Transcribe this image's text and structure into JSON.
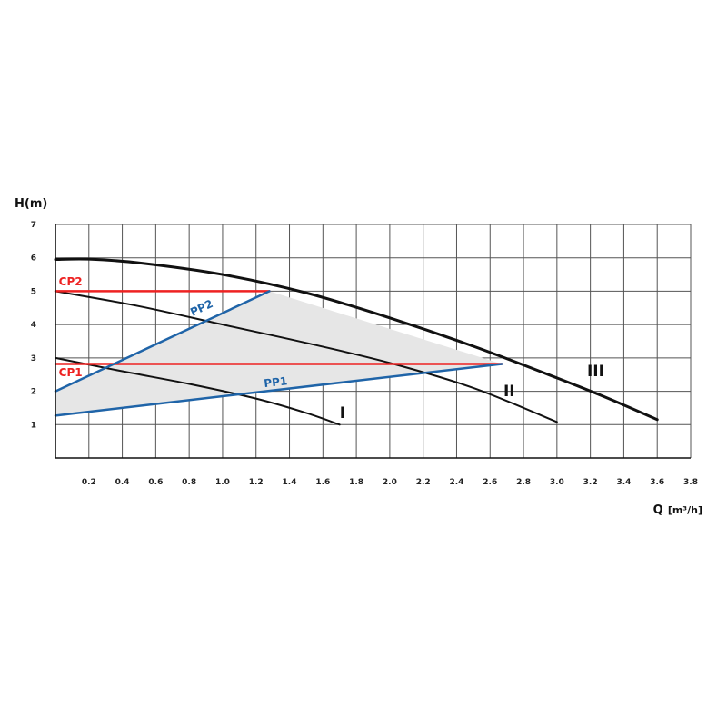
{
  "chart_data": {
    "type": "line",
    "xlabel": "Q",
    "xlabel_unit": "[m³/h]",
    "ylabel": "H(m)",
    "xlim": [
      0,
      3.8
    ],
    "ylim": [
      0,
      7
    ],
    "x_ticks": [
      "0.2",
      "0.4",
      "0.6",
      "0.8",
      "1.0",
      "1.2",
      "1.4",
      "1.6",
      "1.8",
      "2.0",
      "2.2",
      "2.4",
      "2.6",
      "2.8",
      "3.0",
      "3.2",
      "3.4",
      "3.6",
      "3.8"
    ],
    "y_ticks": [
      "1",
      "2",
      "3",
      "4",
      "5",
      "6",
      "7"
    ],
    "grid": true,
    "shaded_region": {
      "color": "#e6e6e6",
      "points": [
        [
          0,
          1.27
        ],
        [
          2.67,
          2.82
        ],
        [
          1.28,
          5.0
        ],
        [
          0,
          2.0
        ]
      ]
    },
    "series": [
      {
        "name": "I",
        "color": "#111111",
        "width": 2,
        "points": [
          [
            0,
            3.0
          ],
          [
            0.4,
            2.6
          ],
          [
            0.8,
            2.22
          ],
          [
            1.2,
            1.78
          ],
          [
            1.5,
            1.35
          ],
          [
            1.7,
            1.0
          ]
        ],
        "label_at": [
          1.7,
          1.2
        ]
      },
      {
        "name": "II",
        "color": "#111111",
        "width": 2,
        "points": [
          [
            0,
            5.0
          ],
          [
            0.5,
            4.55
          ],
          [
            1.0,
            4.0
          ],
          [
            1.5,
            3.45
          ],
          [
            2.0,
            2.85
          ],
          [
            2.5,
            2.1
          ],
          [
            3.0,
            1.08
          ]
        ],
        "label_at": [
          2.68,
          1.85
        ]
      },
      {
        "name": "III",
        "color": "#111111",
        "width": 3,
        "points": [
          [
            0,
            5.95
          ],
          [
            0.2,
            5.96
          ],
          [
            0.5,
            5.85
          ],
          [
            1.0,
            5.5
          ],
          [
            1.5,
            4.95
          ],
          [
            2.0,
            4.2
          ],
          [
            2.5,
            3.35
          ],
          [
            3.0,
            2.4
          ],
          [
            3.3,
            1.8
          ],
          [
            3.6,
            1.15
          ]
        ],
        "label_at": [
          3.18,
          2.45
        ]
      },
      {
        "name": "CP2",
        "color": "#ee2222",
        "width": 2.5,
        "points": [
          [
            0,
            5.0
          ],
          [
            1.28,
            5.0
          ]
        ],
        "label_at": [
          0.02,
          5.18
        ]
      },
      {
        "name": "CP1",
        "color": "#ee2222",
        "width": 2.5,
        "points": [
          [
            0,
            2.82
          ],
          [
            2.67,
            2.82
          ]
        ],
        "label_at": [
          0.02,
          2.45
        ]
      },
      {
        "name": "PP2",
        "color": "#1f64a8",
        "width": 2.5,
        "points": [
          [
            0,
            2.0
          ],
          [
            1.28,
            5.0
          ]
        ],
        "label_at": [
          0.82,
          4.25
        ]
      },
      {
        "name": "PP1",
        "color": "#1f64a8",
        "width": 2.5,
        "points": [
          [
            0,
            1.27
          ],
          [
            2.67,
            2.82
          ]
        ],
        "label_at": [
          1.25,
          2.12
        ]
      }
    ]
  }
}
